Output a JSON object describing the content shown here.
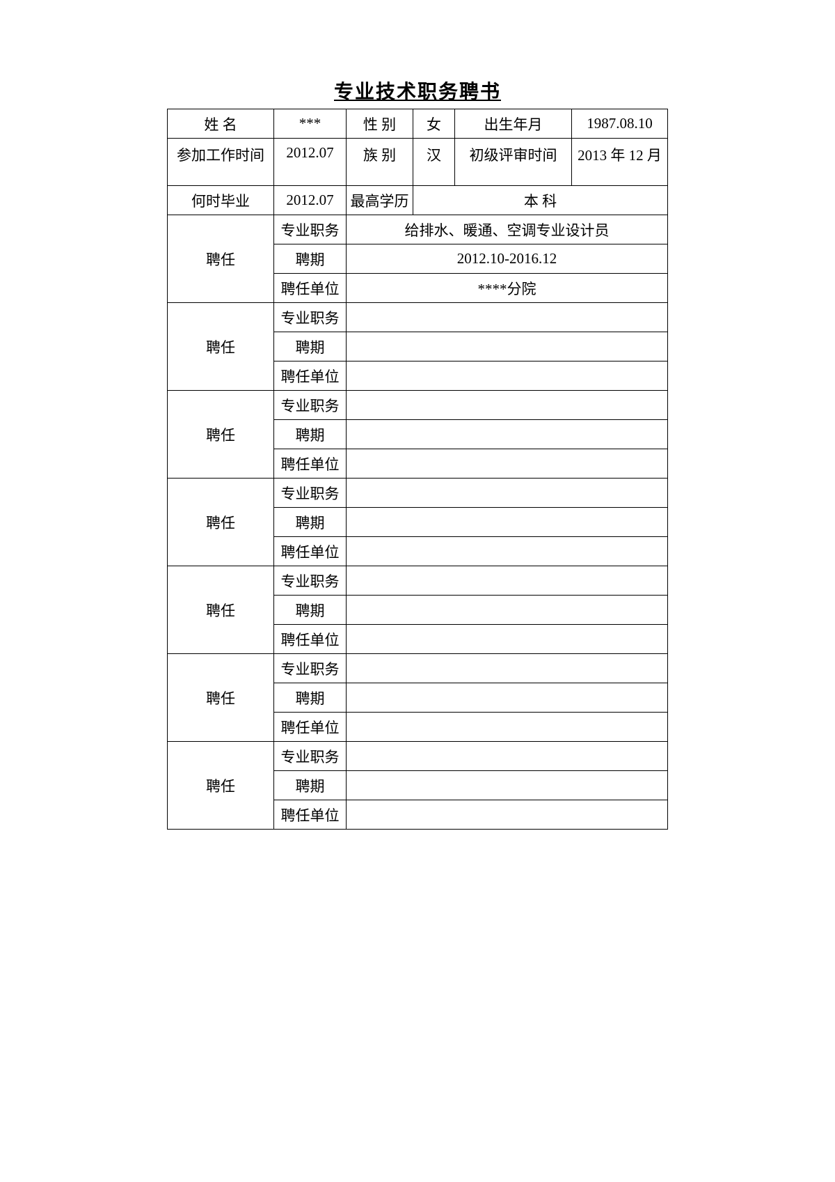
{
  "title": "专业技术职务聘书",
  "labels": {
    "name": "姓 名",
    "gender": "性 别",
    "birth": "出生年月",
    "work_start": "参加工作时间",
    "ethnic": "族 别",
    "junior_review": "初级评审时间",
    "grad_time": "何时毕业",
    "highest_edu": "最高学历",
    "appoint": "聘任",
    "prof_title": "专业职务",
    "term": "聘期",
    "unit": "聘任单位",
    "edu_value_label": "本 科"
  },
  "values": {
    "name": "***",
    "gender": "女",
    "birth": "1987.08.10",
    "work_start": "2012.07",
    "ethnic": "汉",
    "junior_review": "2013 年 12 月",
    "grad_time": "2012.07",
    "highest_edu": "本 科"
  },
  "appointments": [
    {
      "prof_title": "给排水、暖通、空调专业设计员",
      "term": "2012.10-2016.12",
      "unit": "****分院"
    },
    {
      "prof_title": "",
      "term": "",
      "unit": ""
    },
    {
      "prof_title": "",
      "term": "",
      "unit": ""
    },
    {
      "prof_title": "",
      "term": "",
      "unit": ""
    },
    {
      "prof_title": "",
      "term": "",
      "unit": ""
    },
    {
      "prof_title": "",
      "term": "",
      "unit": ""
    },
    {
      "prof_title": "",
      "term": "",
      "unit": ""
    }
  ]
}
